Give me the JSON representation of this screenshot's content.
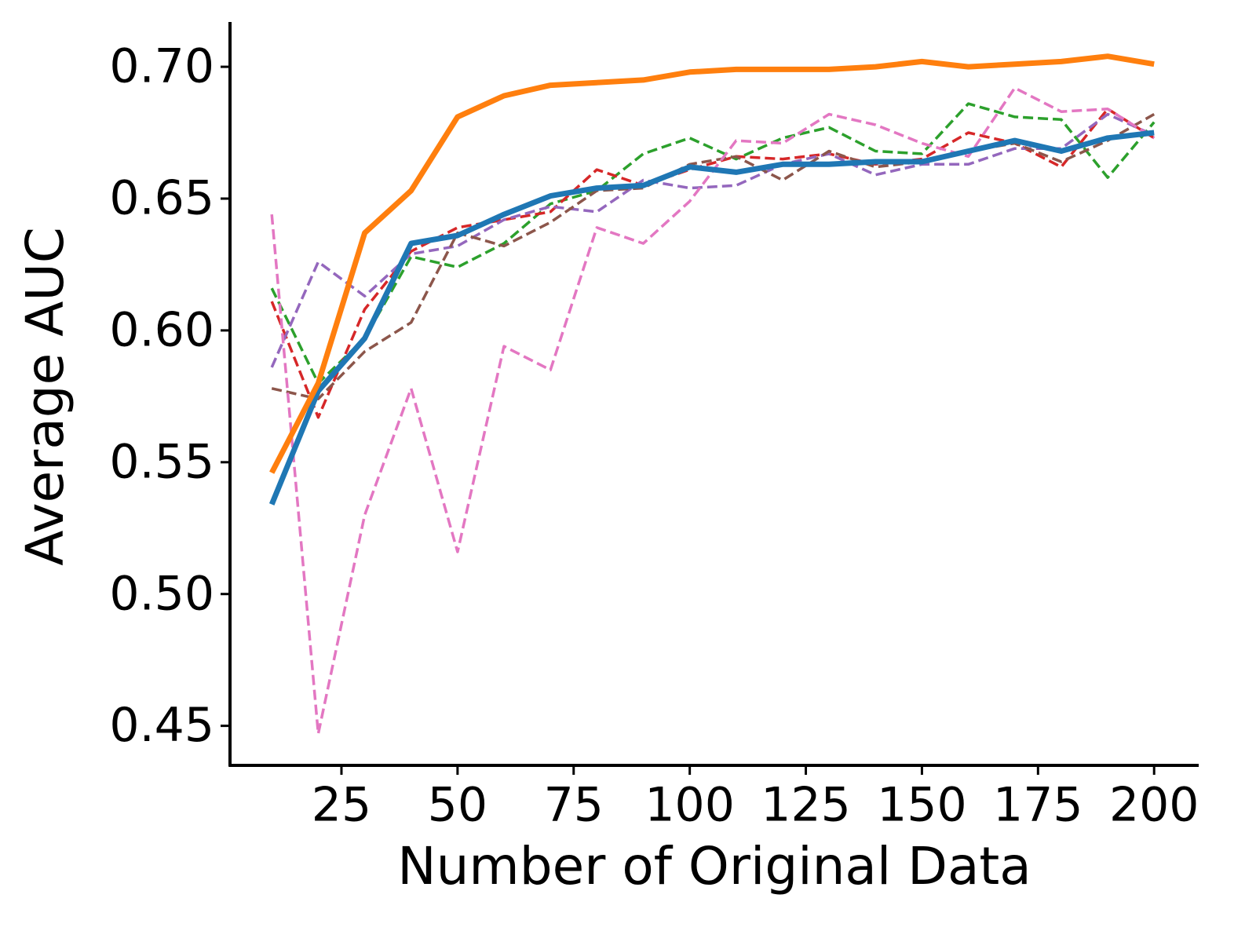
{
  "chart_data": {
    "type": "line",
    "xlabel": "Number of Original Data",
    "ylabel": "Average AUC",
    "x": [
      10,
      20,
      30,
      40,
      50,
      60,
      70,
      80,
      90,
      100,
      110,
      120,
      130,
      140,
      150,
      160,
      170,
      180,
      190,
      200
    ],
    "xlim": [
      1,
      209.6
    ],
    "ylim": [
      0.435,
      0.717
    ],
    "xticks": [
      25,
      50,
      75,
      100,
      125,
      150,
      175,
      200
    ],
    "yticks": [
      0.45,
      {
        "value": 0.5,
        "label": "0.50"
      },
      0.55,
      {
        "value": 0.6,
        "label": "0.60"
      },
      0.65,
      {
        "value": 0.7,
        "label": "0.70"
      }
    ],
    "grid": false,
    "series": [
      {
        "color": "#2ca02c",
        "dashed": true,
        "values": [
          0.616,
          0.58,
          0.597,
          0.628,
          0.624,
          0.633,
          0.648,
          0.653,
          0.667,
          0.673,
          0.665,
          0.673,
          0.677,
          0.668,
          0.667,
          0.686,
          0.681,
          0.68,
          0.658,
          0.679
        ]
      },
      {
        "color": "#d62728",
        "dashed": true,
        "values": [
          0.611,
          0.567,
          0.608,
          0.63,
          0.639,
          0.642,
          0.645,
          0.661,
          0.655,
          0.661,
          0.666,
          0.665,
          0.667,
          0.663,
          0.665,
          0.675,
          0.671,
          0.662,
          0.684,
          0.673
        ]
      },
      {
        "color": "#9467bd",
        "dashed": true,
        "values": [
          0.586,
          0.626,
          0.613,
          0.629,
          0.632,
          0.642,
          0.647,
          0.645,
          0.657,
          0.654,
          0.655,
          0.663,
          0.667,
          0.659,
          0.663,
          0.663,
          0.669,
          0.669,
          0.682,
          0.674
        ]
      },
      {
        "color": "#8c564b",
        "dashed": true,
        "values": [
          0.578,
          0.574,
          0.592,
          0.603,
          0.637,
          0.632,
          0.641,
          0.653,
          0.654,
          0.663,
          0.666,
          0.657,
          0.668,
          0.662,
          0.664,
          0.668,
          0.671,
          0.664,
          0.672,
          0.682
        ]
      },
      {
        "color": "#e377c2",
        "dashed": true,
        "values": [
          0.644,
          0.447,
          0.53,
          0.578,
          0.516,
          0.594,
          0.585,
          0.639,
          0.633,
          0.649,
          0.672,
          0.671,
          0.682,
          0.678,
          0.671,
          0.666,
          0.692,
          0.683,
          0.684,
          0.673
        ]
      },
      {
        "color": "#1f77b4",
        "dashed": false,
        "values": [
          0.534,
          0.577,
          0.597,
          0.633,
          0.636,
          0.644,
          0.651,
          0.654,
          0.655,
          0.662,
          0.66,
          0.663,
          0.663,
          0.664,
          0.664,
          0.668,
          0.672,
          0.668,
          0.673,
          0.675
        ]
      },
      {
        "color": "#ff7f0e",
        "dashed": false,
        "values": [
          0.546,
          0.58,
          0.637,
          0.653,
          0.681,
          0.689,
          0.693,
          0.694,
          0.695,
          0.698,
          0.699,
          0.699,
          0.699,
          0.7,
          0.702,
          0.7,
          0.701,
          0.702,
          0.704,
          0.701
        ]
      }
    ]
  }
}
